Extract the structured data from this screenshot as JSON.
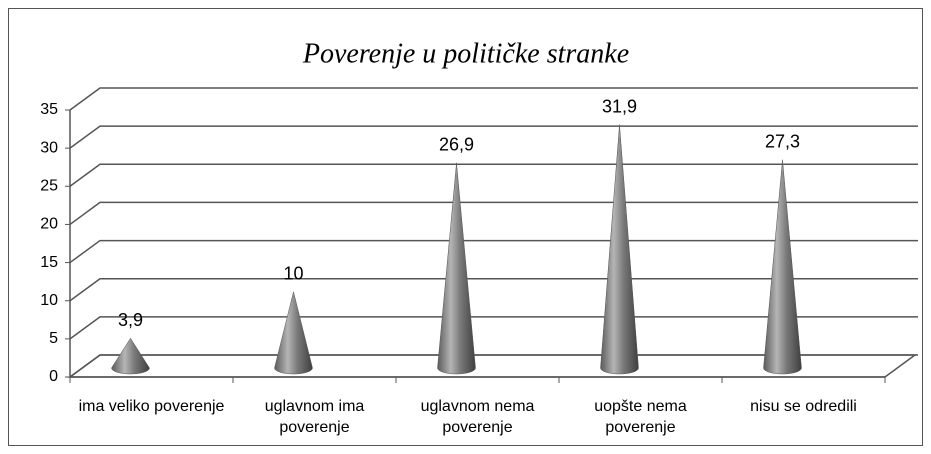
{
  "chart_data": {
    "type": "cone",
    "title": "Poverenje u političke stranke",
    "categories": [
      "ima veliko poverenje",
      "uglavnom ima poverenje",
      "uglavnom nema poverenje",
      "uopšte nema poverenje",
      "nisu se odredili"
    ],
    "values": [
      3.9,
      10,
      26.9,
      31.9,
      27.3
    ],
    "value_labels": [
      "3,9",
      "10",
      "26,9",
      "31,9",
      "27,3"
    ],
    "color": "#7a7a7a",
    "ylim": [
      0,
      35
    ],
    "yticks": [
      0,
      5,
      10,
      15,
      20,
      25,
      30,
      35
    ],
    "grid": true
  }
}
